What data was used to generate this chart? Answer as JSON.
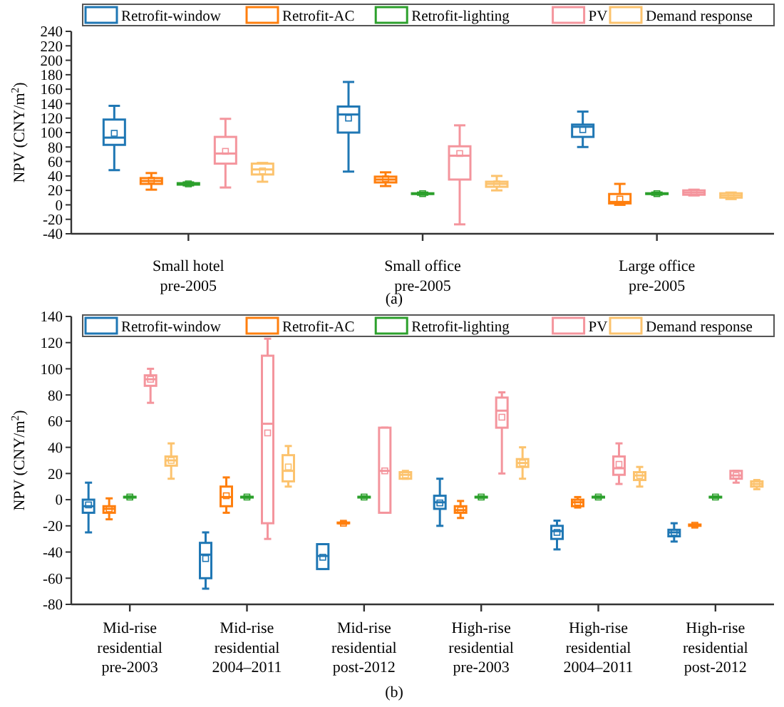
{
  "chart_data": [
    {
      "type": "box",
      "ylabel": "NPV (CNY/m$^{2}$)",
      "categories": [
        "Small hotel\npre-2005",
        "Small office\npre-2005",
        "Large office\npre-2005"
      ],
      "ylim": [
        -40,
        240
      ],
      "yticks": [
        -40,
        -20,
        0,
        20,
        40,
        60,
        80,
        100,
        120,
        140,
        160,
        180,
        200,
        220,
        240
      ],
      "legend": "top right",
      "annotations": [
        "(a)"
      ],
      "series": [
        {
          "name": "Retrofit-window",
          "color": "#1f77b4",
          "boxes": [
            {
              "low": 48,
              "q1": 83,
              "median": 93,
              "q3": 118,
              "high": 137,
              "mean": 99
            },
            {
              "low": 46,
              "q1": 100,
              "median": 125,
              "q3": 136,
              "high": 170,
              "mean": 120
            },
            {
              "low": 80,
              "q1": 94,
              "median": 108,
              "q3": 111,
              "high": 129,
              "mean": 104
            }
          ]
        },
        {
          "name": "Retrofit-AC",
          "color": "#ff7f0e",
          "boxes": [
            {
              "low": 21,
              "q1": 29,
              "median": 33,
              "q3": 37,
              "high": 44,
              "mean": 34
            },
            {
              "low": 26,
              "q1": 31,
              "median": 35,
              "q3": 39,
              "high": 45,
              "mean": 36
            },
            {
              "low": 0,
              "q1": 2,
              "median": 4,
              "q3": 15,
              "high": 29,
              "mean": 8
            }
          ]
        },
        {
          "name": "Retrofit-lighting",
          "color": "#2ca02c",
          "boxes": [
            {
              "low": 27,
              "q1": 28,
              "median": 29,
              "q3": 30,
              "high": 31,
              "mean": 29
            },
            {
              "low": 14,
              "q1": 15,
              "median": 15.5,
              "q3": 16,
              "high": 17,
              "mean": 15.5
            },
            {
              "low": 14,
              "q1": 15,
              "median": 15.5,
              "q3": 16,
              "high": 17,
              "mean": 15.5
            }
          ]
        },
        {
          "name": "PV",
          "color": "#f4959d",
          "boxes": [
            {
              "low": 24,
              "q1": 57,
              "median": 71,
              "q3": 94,
              "high": 119,
              "mean": 74
            },
            {
              "low": -27,
              "q1": 35,
              "median": 68,
              "q3": 81,
              "high": 110,
              "mean": 71
            },
            {
              "low": 13,
              "q1": 14,
              "median": 17,
              "q3": 20,
              "high": 21,
              "mean": 17
            }
          ]
        },
        {
          "name": "Demand response",
          "color": "#fcc36e",
          "boxes": [
            {
              "low": 32,
              "q1": 42,
              "median": 49,
              "q3": 57,
              "high": 58,
              "mean": 47
            },
            {
              "low": 20,
              "q1": 25,
              "median": 29,
              "q3": 32,
              "high": 40,
              "mean": 29
            },
            {
              "low": 8,
              "q1": 10,
              "median": 13,
              "q3": 16,
              "high": 17,
              "mean": 13
            }
          ]
        }
      ]
    },
    {
      "type": "box",
      "ylabel": "NPV (CNY/m$^{2}$)",
      "categories": [
        "Mid-rise\nresidential\npre-2003",
        "Mid-rise\nresidential\n2004–2011",
        "Mid-rise\nresidential\npost-2012",
        "High-rise\nresidential\npre-2003",
        "High-rise\nresidential\n2004–2011",
        "High-rise\nresidential\npost-2012"
      ],
      "ylim": [
        -80,
        140
      ],
      "yticks": [
        -80,
        -60,
        -40,
        -20,
        0,
        20,
        40,
        60,
        80,
        100,
        120,
        140
      ],
      "legend": "top right",
      "annotations": [
        "(b)"
      ],
      "series": [
        {
          "name": "Retrofit-window",
          "color": "#1f77b4",
          "boxes": [
            {
              "low": -25,
              "q1": -10,
              "median": -5,
              "q3": 0,
              "high": 13,
              "mean": -4
            },
            {
              "low": -68,
              "q1": -60,
              "median": -42,
              "q3": -33,
              "high": -25,
              "mean": -45
            },
            {
              "low": -53,
              "q1": -53,
              "median": -43,
              "q3": -34,
              "high": -34,
              "mean": -44
            },
            {
              "low": -20,
              "q1": -7,
              "median": -2,
              "q3": 3,
              "high": 16,
              "mean": -2.5
            },
            {
              "low": -38,
              "q1": -30,
              "median": -24,
              "q3": -20,
              "high": -16,
              "mean": -25
            },
            {
              "low": -32,
              "q1": -28,
              "median": -25,
              "q3": -23,
              "high": -18,
              "mean": -25
            }
          ]
        },
        {
          "name": "Retrofit-AC",
          "color": "#ff7f0e",
          "boxes": [
            {
              "low": -15,
              "q1": -10,
              "median": -7,
              "q3": -5,
              "high": 1,
              "mean": -7
            },
            {
              "low": -10,
              "q1": -5,
              "median": 2,
              "q3": 10,
              "high": 17,
              "mean": 3
            },
            {
              "low": -18.5,
              "q1": -18,
              "median": -18,
              "q3": -17.5,
              "high": -17,
              "mean": -18
            },
            {
              "low": -14,
              "q1": -10,
              "median": -8,
              "q3": -5,
              "high": -1,
              "mean": -8
            },
            {
              "low": -6,
              "q1": -5,
              "median": -2,
              "q3": 0,
              "high": 2,
              "mean": -2
            },
            {
              "low": -20.5,
              "q1": -20,
              "median": -19.5,
              "q3": -19,
              "high": -18.5,
              "mean": -19.5
            }
          ]
        },
        {
          "name": "Retrofit-lighting",
          "color": "#2ca02c",
          "boxes": [
            {
              "low": 1.5,
              "q1": 1.8,
              "median": 2,
              "q3": 2.2,
              "high": 2.5,
              "mean": 2
            },
            {
              "low": 1.5,
              "q1": 1.8,
              "median": 2,
              "q3": 2.2,
              "high": 2.5,
              "mean": 2
            },
            {
              "low": 1.5,
              "q1": 1.8,
              "median": 2,
              "q3": 2.2,
              "high": 2.5,
              "mean": 2
            },
            {
              "low": 1.5,
              "q1": 1.8,
              "median": 2,
              "q3": 2.2,
              "high": 2.5,
              "mean": 2
            },
            {
              "low": 1.5,
              "q1": 1.8,
              "median": 2,
              "q3": 2.2,
              "high": 2.5,
              "mean": 2
            },
            {
              "low": 1.5,
              "q1": 1.8,
              "median": 2,
              "q3": 2.2,
              "high": 2.5,
              "mean": 2
            }
          ]
        },
        {
          "name": "PV",
          "color": "#f4959d",
          "boxes": [
            {
              "low": 74,
              "q1": 87,
              "median": 92,
              "q3": 95,
              "high": 100,
              "mean": 92
            },
            {
              "low": -30,
              "q1": -18,
              "median": 58,
              "q3": 110,
              "high": 123,
              "mean": 51
            },
            {
              "low": -10,
              "q1": -10,
              "median": 22,
              "q3": 55,
              "high": 55,
              "mean": 22
            },
            {
              "low": 20,
              "q1": 55,
              "median": 68,
              "q3": 78,
              "high": 82,
              "mean": 63
            },
            {
              "low": 12,
              "q1": 19,
              "median": 24,
              "q3": 33,
              "high": 43,
              "mean": 27
            },
            {
              "low": 13,
              "q1": 16,
              "median": 18.5,
              "q3": 22,
              "high": 22,
              "mean": 18.5
            }
          ]
        },
        {
          "name": "Demand response",
          "color": "#fcc36e",
          "boxes": [
            {
              "low": 16,
              "q1": 26,
              "median": 30,
              "q3": 33,
              "high": 43,
              "mean": 30
            },
            {
              "low": 10,
              "q1": 14,
              "median": 22,
              "q3": 34,
              "high": 41,
              "mean": 25
            },
            {
              "low": 16,
              "q1": 16,
              "median": 19,
              "q3": 21,
              "high": 22,
              "mean": 19
            },
            {
              "low": 16,
              "q1": 25,
              "median": 28,
              "q3": 31,
              "high": 40,
              "mean": 28
            },
            {
              "low": 10,
              "q1": 15,
              "median": 18.5,
              "q3": 21,
              "high": 25,
              "mean": 18.5
            },
            {
              "low": 8,
              "q1": 10,
              "median": 12,
              "q3": 14,
              "high": 15,
              "mean": 12
            }
          ]
        }
      ]
    }
  ]
}
